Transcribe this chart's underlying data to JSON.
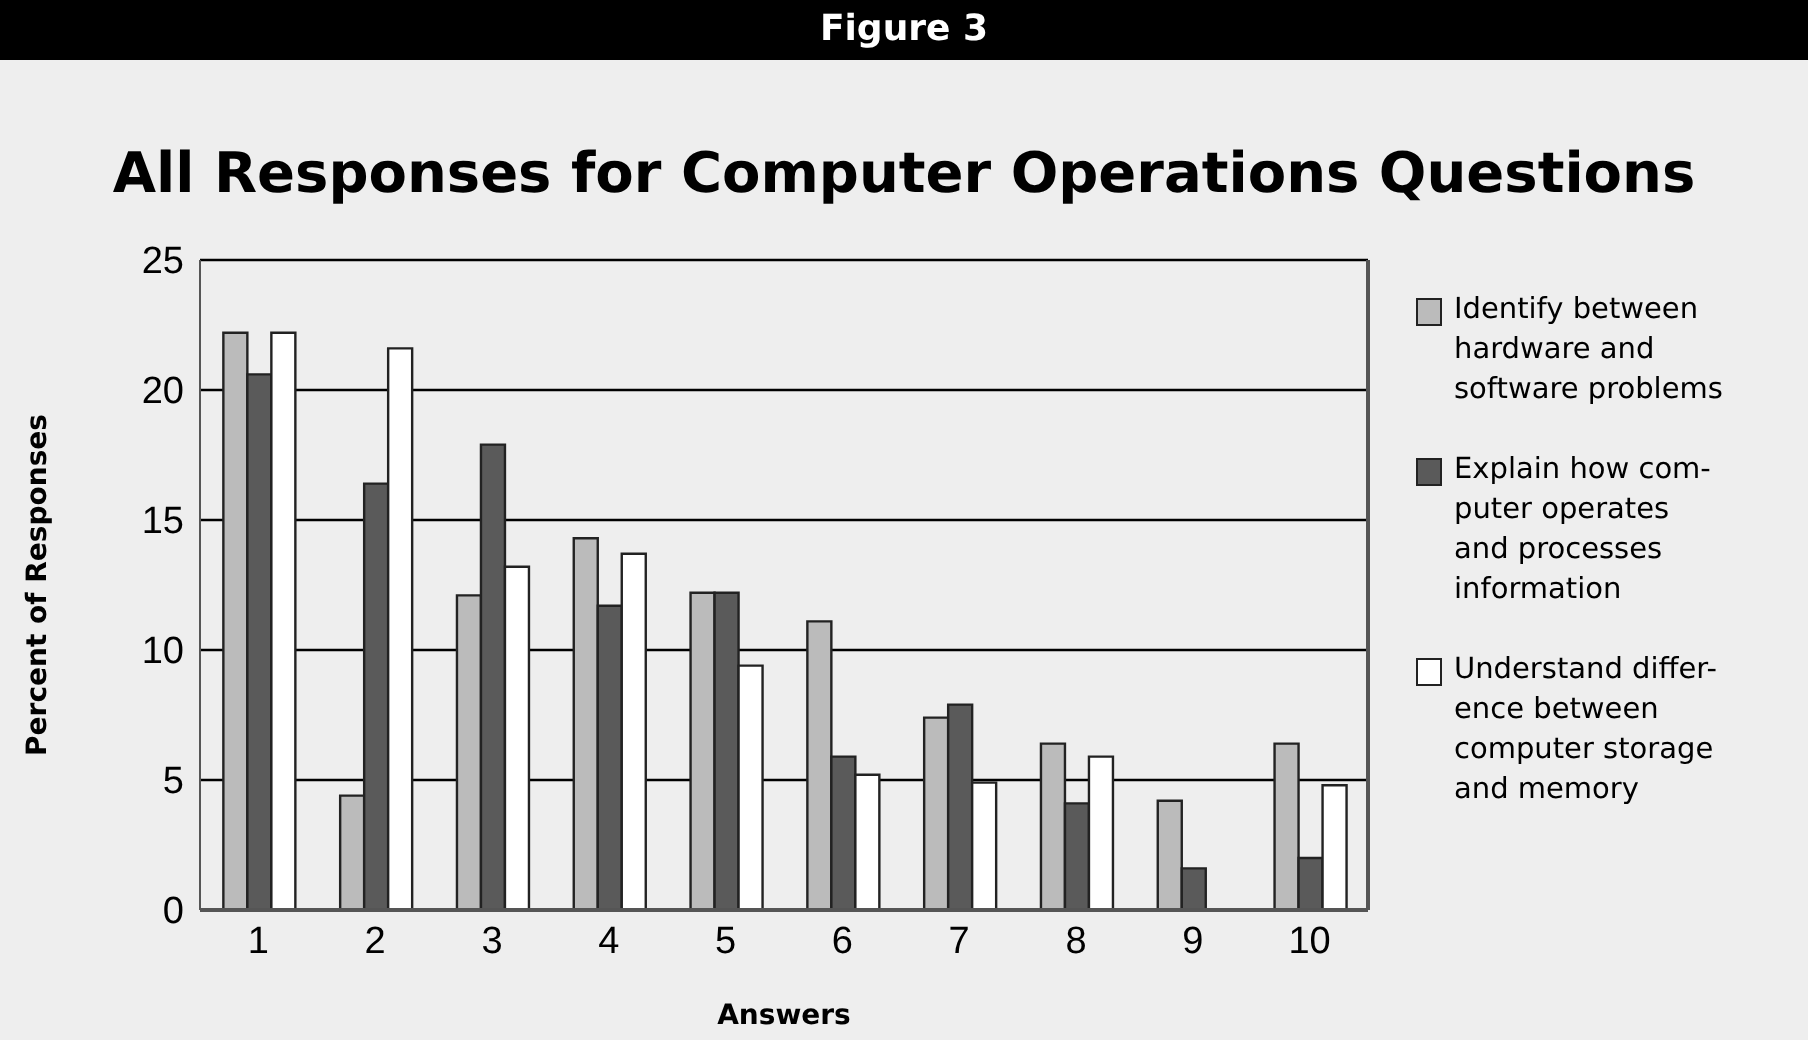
{
  "chart_data": {
    "type": "bar",
    "title": "All Responses for Computer Operations Questions",
    "annotations": [
      "Figure 3"
    ],
    "xlabel": "Answers",
    "ylabel": "Percent of Responses",
    "categories": [
      "1",
      "2",
      "3",
      "4",
      "5",
      "6",
      "7",
      "8",
      "9",
      "10"
    ],
    "series": [
      {
        "name": "Identify between\nhardware and\nsoftware problems",
        "color": "#bbbbbb",
        "values": [
          22.2,
          4.4,
          12.1,
          14.3,
          12.2,
          11.1,
          7.4,
          6.4,
          4.2,
          6.4
        ]
      },
      {
        "name": "Explain how com-\nputer operates\nand processes\ninformation",
        "color": "#5a5a5a",
        "values": [
          20.6,
          16.4,
          17.9,
          11.7,
          12.2,
          5.9,
          7.9,
          4.1,
          1.6,
          2.0
        ]
      },
      {
        "name": "Understand differ-\nence between\ncomputer storage\nand memory",
        "color": "#ffffff",
        "values": [
          22.2,
          21.6,
          13.2,
          13.7,
          9.4,
          5.2,
          4.9,
          5.9,
          null,
          4.8
        ]
      }
    ],
    "ylim": [
      0,
      25
    ],
    "yticks": [
      0,
      5,
      10,
      15,
      20,
      25
    ],
    "grid": "y",
    "legend": "right"
  }
}
